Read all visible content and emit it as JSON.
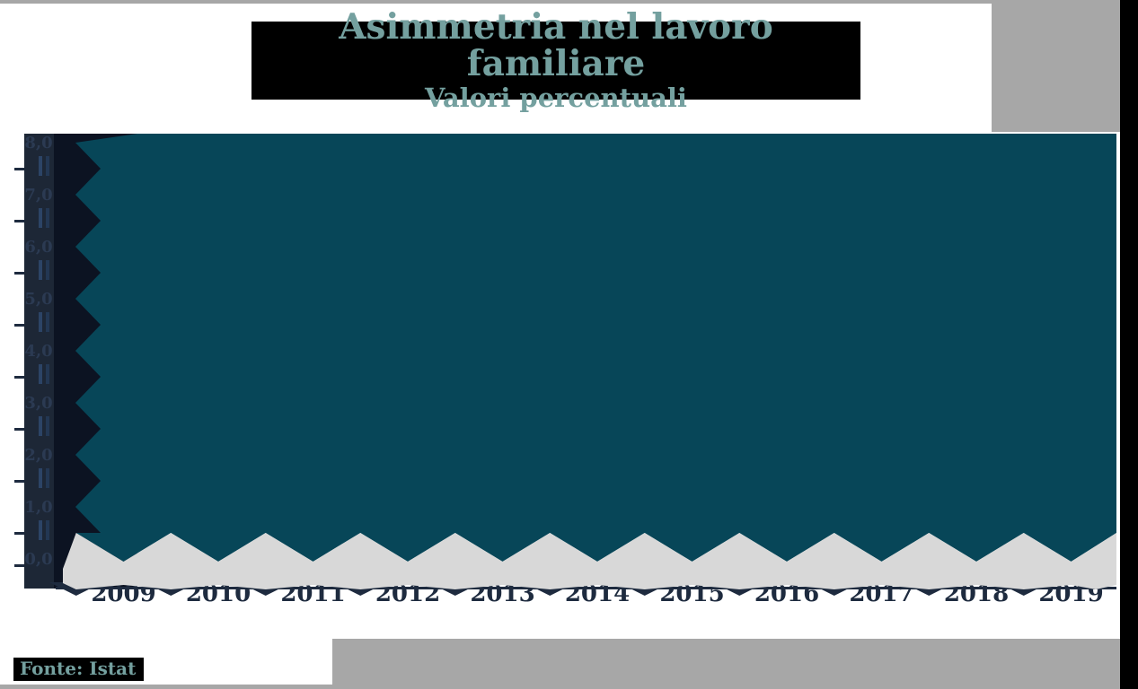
{
  "header": {
    "title": "Asimmetria nel lavoro familiare",
    "subtitle": "Valori percentuali"
  },
  "source": {
    "label": "Fonte: Istat"
  },
  "chart_data": {
    "type": "area",
    "title": "Asimmetria nel lavoro familiare",
    "subtitle": "Valori percentuali",
    "source": "Fonte: Istat",
    "categories": [
      "2009",
      "2010",
      "2011",
      "2012",
      "2013",
      "2014",
      "2015",
      "2016",
      "2017",
      "2018",
      "2019"
    ],
    "y_tick_labels": [
      "8,0",
      "7,0",
      "6,0",
      "5,0",
      "4,0",
      "3,0",
      "2,0",
      "1,0",
      "0,0"
    ],
    "ylim": [
      0,
      8
    ],
    "xlabel": "",
    "ylabel": "",
    "grid": false,
    "legend": "none",
    "series": [
      {
        "name": "Asimmetria nel lavoro familiare",
        "values": [
          8.0,
          8.0,
          8.0,
          8.0,
          8.0,
          8.0,
          8.0,
          8.0,
          8.0,
          8.0,
          8.0
        ]
      }
    ],
    "rendering_note": "area fill spans the full plot height for every year; plot boundary shows triangular zigzag notches along left and bottom edges; axis labels partially overlapped by chart shapes"
  },
  "colors": {
    "title_text": "#74a09f",
    "title_block": "#000000",
    "teal_area": "#074658",
    "axis_navy": "#1e2b3f",
    "strip_column": "#1d2736",
    "strip_notch_zone": "#0c1322",
    "y_tick_text": "#2b3a52",
    "garble_bar_a": "#2c4466",
    "garble_bar_b": "#233753",
    "gray_band": "#d8d8d8",
    "gray_block": "#a7a7a7",
    "source_text": "#74a09f",
    "source_block": "#000000"
  }
}
